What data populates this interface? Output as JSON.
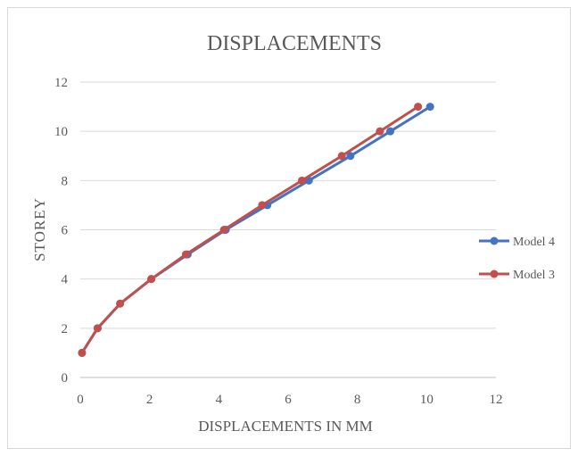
{
  "chart_data": {
    "type": "line",
    "title": "DISPLACEMENTS",
    "xlabel": "DISPLACEMENTS IN MM",
    "ylabel": "STOREY",
    "xlim": [
      0,
      12
    ],
    "ylim": [
      0,
      12
    ],
    "x_ticks": [
      "0",
      "2",
      "4",
      "6",
      "8",
      "10",
      "12"
    ],
    "y_ticks": [
      "0",
      "2",
      "4",
      "6",
      "8",
      "10",
      "12"
    ],
    "grid": "horizontal",
    "legend_position": "right",
    "series": [
      {
        "name": "Model 4",
        "color": "#4472C4",
        "points": [
          {
            "x": 0.05,
            "y": 1
          },
          {
            "x": 0.5,
            "y": 2
          },
          {
            "x": 1.15,
            "y": 3
          },
          {
            "x": 2.05,
            "y": 4
          },
          {
            "x": 3.1,
            "y": 5
          },
          {
            "x": 4.2,
            "y": 6
          },
          {
            "x": 5.4,
            "y": 7
          },
          {
            "x": 6.6,
            "y": 8
          },
          {
            "x": 7.8,
            "y": 9
          },
          {
            "x": 8.95,
            "y": 10
          },
          {
            "x": 10.1,
            "y": 11
          }
        ]
      },
      {
        "name": "Model 3",
        "color": "#C0504D",
        "points": [
          {
            "x": 0.05,
            "y": 1
          },
          {
            "x": 0.5,
            "y": 2
          },
          {
            "x": 1.15,
            "y": 3
          },
          {
            "x": 2.05,
            "y": 4
          },
          {
            "x": 3.05,
            "y": 5
          },
          {
            "x": 4.15,
            "y": 6
          },
          {
            "x": 5.25,
            "y": 7
          },
          {
            "x": 6.4,
            "y": 8
          },
          {
            "x": 7.55,
            "y": 9
          },
          {
            "x": 8.65,
            "y": 10
          },
          {
            "x": 9.75,
            "y": 11
          }
        ]
      }
    ]
  }
}
